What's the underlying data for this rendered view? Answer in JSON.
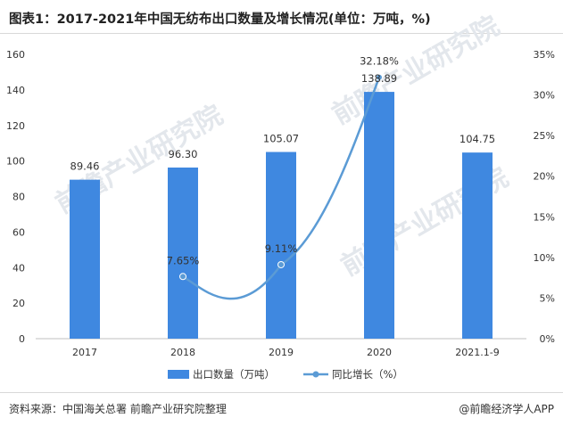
{
  "title": "图表1：2017-2021年中国无纺布出口数量及增长情况(单位：万吨，%)",
  "source": "资料来源：中国海关总署 前瞻产业研究院整理",
  "brand": "@前瞻经济学人APP",
  "colors": {
    "bar": "#3f88e0",
    "line": "#5b9bd5"
  },
  "chart_data": {
    "type": "bar",
    "categories": [
      "2017",
      "2018",
      "2019",
      "2020",
      "2021.1-9"
    ],
    "series": [
      {
        "name": "出口数量（万吨）",
        "type": "bar",
        "axis": "left",
        "values": [
          89.46,
          96.3,
          105.07,
          138.89,
          104.75
        ],
        "labels": [
          "89.46",
          "96.30",
          "105.07",
          "138.89",
          "104.75"
        ]
      },
      {
        "name": "同比增长（%）",
        "type": "line",
        "axis": "right",
        "x": [
          "2018",
          "2019",
          "2020"
        ],
        "values": [
          7.65,
          9.11,
          32.18
        ],
        "labels": [
          "7.65%",
          "9.11%",
          "32.18%"
        ]
      }
    ],
    "y_left": {
      "min": 0,
      "max": 160,
      "ticks": [
        "0",
        "20",
        "40",
        "60",
        "80",
        "100",
        "120",
        "140",
        "160"
      ]
    },
    "y_right": {
      "min": 0,
      "max": 35,
      "ticks": [
        "0%",
        "5%",
        "10%",
        "15%",
        "20%",
        "25%",
        "30%",
        "35%"
      ]
    },
    "grid": false,
    "legend": "bottom-center"
  }
}
